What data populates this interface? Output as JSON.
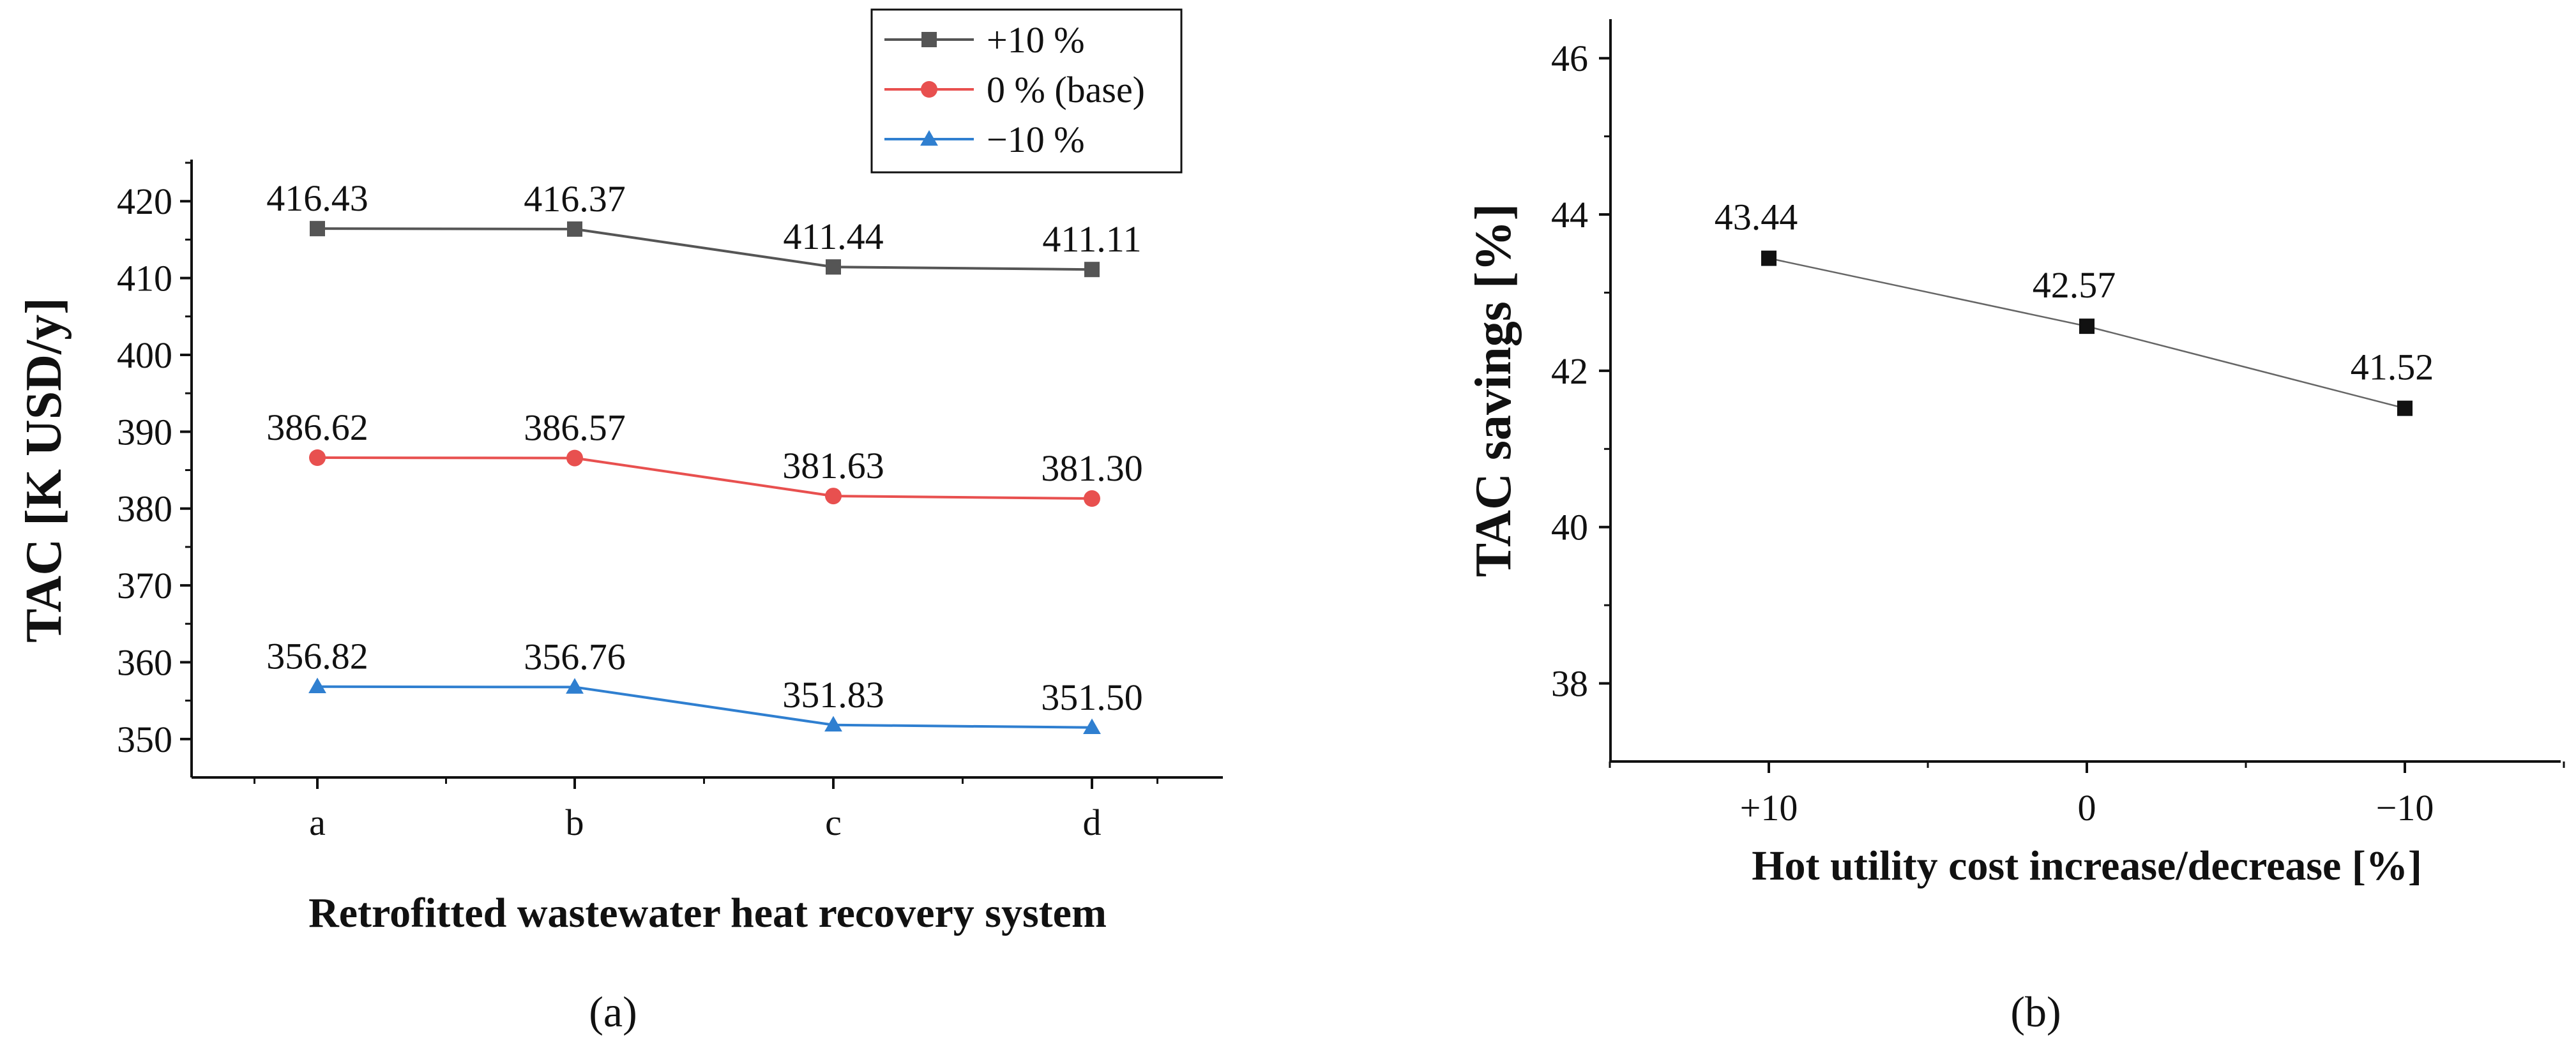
{
  "chart_data": [
    {
      "type": "line",
      "panel": "(a)",
      "xlabel": "Retrofitted wastewater heat recovery system",
      "ylabel": "TAC [K USD/y]",
      "categories": [
        "a",
        "b",
        "c",
        "d"
      ],
      "ylim": [
        345,
        425
      ],
      "yticks": [
        350,
        360,
        370,
        380,
        390,
        400,
        410,
        420
      ],
      "legend_position": "top-right",
      "series": [
        {
          "name": "+10 %",
          "color": "#555555",
          "marker": "square",
          "values": [
            416.43,
            416.37,
            411.44,
            411.11
          ],
          "labels": [
            "416.43",
            "416.37",
            "411.44",
            "411.11"
          ]
        },
        {
          "name": "0 % (base)",
          "color": "#e8504f",
          "marker": "circle",
          "values": [
            386.62,
            386.57,
            381.63,
            381.3
          ],
          "labels": [
            "386.62",
            "386.57",
            "381.63",
            "381.30"
          ]
        },
        {
          "name": "−10 %",
          "color": "#2f7fd0",
          "marker": "triangle",
          "values": [
            356.82,
            356.76,
            351.83,
            351.5
          ],
          "labels": [
            "356.82",
            "356.76",
            "351.83",
            "351.50"
          ]
        }
      ]
    },
    {
      "type": "line",
      "panel": "(b)",
      "xlabel": "Hot utility cost increase/decrease [%]",
      "ylabel": "TAC savings [%]",
      "categories": [
        "+10",
        "0",
        "−10"
      ],
      "ylim": [
        37,
        46.5
      ],
      "yticks": [
        38,
        40,
        42,
        44,
        46
      ],
      "series": [
        {
          "name": "TAC savings",
          "color": "#111111",
          "marker": "square",
          "values": [
            43.44,
            42.57,
            41.52
          ],
          "labels": [
            "43.44",
            "42.57",
            "41.52"
          ]
        }
      ]
    }
  ]
}
